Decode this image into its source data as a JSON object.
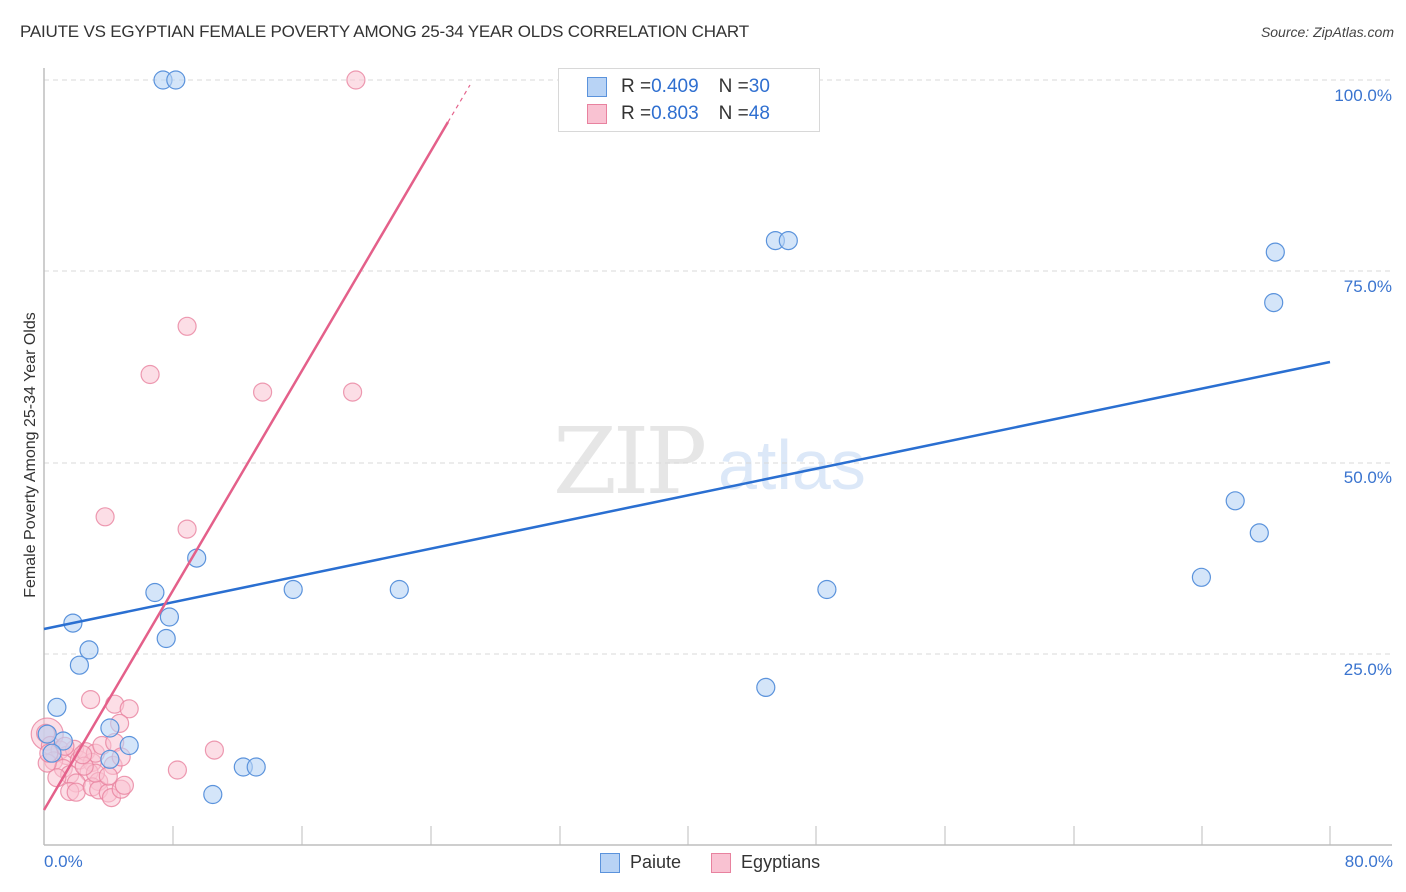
{
  "header": {
    "title": "PAIUTE VS EGYPTIAN FEMALE POVERTY AMONG 25-34 YEAR OLDS CORRELATION CHART",
    "source": "Source: ZipAtlas.com"
  },
  "watermark": {
    "zip": "ZIP",
    "atlas": "atlas"
  },
  "axes": {
    "ylabel": "Female Poverty Among 25-34 Year Olds",
    "x_min_label": "0.0%",
    "x_max_label": "80.0%",
    "y_ticks": [
      "100.0%",
      "75.0%",
      "50.0%",
      "25.0%"
    ]
  },
  "legend": {
    "paiute": {
      "r_label": "R = ",
      "r_value": "0.409",
      "n_label": "N = ",
      "n_value": "30"
    },
    "egyptians": {
      "r_label": "R = ",
      "r_value": "0.803",
      "n_label": "N = ",
      "n_value": "48"
    }
  },
  "bottom_legend": {
    "paiute": "Paiute",
    "egyptians": "Egyptians"
  },
  "colors": {
    "paiute_fill": "#b8d3f5",
    "paiute_stroke": "#5b93dc",
    "paiute_line": "#2a6fd1",
    "egyptians_fill": "#f9c2d2",
    "egyptians_stroke": "#e8829f",
    "egyptians_line": "#e4608a",
    "tick_label": "#3a74cf"
  },
  "chart_data": {
    "type": "scatter",
    "title": "PAIUTE VS EGYPTIAN FEMALE POVERTY AMONG 25-34 YEAR OLDS CORRELATION CHART",
    "xlabel": "",
    "ylabel": "Female Poverty Among 25-34 Year Olds",
    "xlim": [
      0,
      80
    ],
    "ylim": [
      0,
      100
    ],
    "x_ticks": [
      "0.0%",
      "80.0%"
    ],
    "y_ticks": [
      "25.0%",
      "50.0%",
      "75.0%",
      "100.0%"
    ],
    "grid": "horizontal dashed",
    "legend_position": "top-center and bottom",
    "series": [
      {
        "name": "Paiute",
        "r": 0.409,
        "n": 30,
        "trend": {
          "x": [
            0,
            80
          ],
          "y": [
            28.8,
            63.6
          ]
        },
        "points": [
          {
            "x": 7.4,
            "y": 100
          },
          {
            "x": 8.2,
            "y": 100
          },
          {
            "x": 45.5,
            "y": 79.0
          },
          {
            "x": 46.3,
            "y": 79.0
          },
          {
            "x": 76.6,
            "y": 77.5
          },
          {
            "x": 76.5,
            "y": 70.9
          },
          {
            "x": 74.1,
            "y": 45.0
          },
          {
            "x": 75.6,
            "y": 40.8
          },
          {
            "x": 72.0,
            "y": 35.0
          },
          {
            "x": 48.7,
            "y": 33.4
          },
          {
            "x": 44.9,
            "y": 20.6
          },
          {
            "x": 22.1,
            "y": 33.4
          },
          {
            "x": 15.5,
            "y": 33.4
          },
          {
            "x": 9.5,
            "y": 37.5
          },
          {
            "x": 6.9,
            "y": 33.0
          },
          {
            "x": 7.8,
            "y": 29.8
          },
          {
            "x": 7.6,
            "y": 27.0
          },
          {
            "x": 1.8,
            "y": 29.0
          },
          {
            "x": 2.8,
            "y": 25.5
          },
          {
            "x": 2.2,
            "y": 23.5
          },
          {
            "x": 0.8,
            "y": 18.0
          },
          {
            "x": 4.1,
            "y": 15.3
          },
          {
            "x": 1.2,
            "y": 13.6
          },
          {
            "x": 5.3,
            "y": 13.0
          },
          {
            "x": 0.2,
            "y": 14.5
          },
          {
            "x": 4.1,
            "y": 11.2
          },
          {
            "x": 12.4,
            "y": 10.2
          },
          {
            "x": 13.2,
            "y": 10.2
          },
          {
            "x": 10.5,
            "y": 6.6
          },
          {
            "x": 0.5,
            "y": 12.0
          }
        ]
      },
      {
        "name": "Egyptians",
        "r": 0.803,
        "n": 48,
        "trend": {
          "x": [
            0,
            25.1
          ],
          "y": [
            4.6,
            94.4
          ],
          "dashed_extension_to": {
            "x": 26.5,
            "y": 99.3
          }
        },
        "points": [
          {
            "x": 19.4,
            "y": 100
          },
          {
            "x": 8.9,
            "y": 67.8
          },
          {
            "x": 6.6,
            "y": 61.5
          },
          {
            "x": 13.6,
            "y": 59.2
          },
          {
            "x": 19.2,
            "y": 59.2
          },
          {
            "x": 8.9,
            "y": 41.3
          },
          {
            "x": 3.8,
            "y": 42.9
          },
          {
            "x": 2.9,
            "y": 19.0
          },
          {
            "x": 4.4,
            "y": 18.4
          },
          {
            "x": 5.3,
            "y": 17.8
          },
          {
            "x": 4.7,
            "y": 15.9
          },
          {
            "x": 10.6,
            "y": 12.4
          },
          {
            "x": 8.3,
            "y": 9.8
          },
          {
            "x": 0.1,
            "y": 14.6
          },
          {
            "x": 0.4,
            "y": 13.0
          },
          {
            "x": 1.0,
            "y": 12.4
          },
          {
            "x": 1.4,
            "y": 11.7
          },
          {
            "x": 0.6,
            "y": 11.0
          },
          {
            "x": 1.9,
            "y": 12.5
          },
          {
            "x": 2.2,
            "y": 11.1
          },
          {
            "x": 2.6,
            "y": 12.2
          },
          {
            "x": 3.0,
            "y": 10.8
          },
          {
            "x": 1.2,
            "y": 10.0
          },
          {
            "x": 1.6,
            "y": 9.2
          },
          {
            "x": 2.8,
            "y": 9.5
          },
          {
            "x": 3.2,
            "y": 12.0
          },
          {
            "x": 3.6,
            "y": 13.0
          },
          {
            "x": 4.3,
            "y": 10.4
          },
          {
            "x": 4.4,
            "y": 13.4
          },
          {
            "x": 4.8,
            "y": 11.5
          },
          {
            "x": 3.4,
            "y": 8.3
          },
          {
            "x": 2.0,
            "y": 8.1
          },
          {
            "x": 1.6,
            "y": 7.0
          },
          {
            "x": 2.0,
            "y": 6.9
          },
          {
            "x": 3.0,
            "y": 7.6
          },
          {
            "x": 3.4,
            "y": 7.2
          },
          {
            "x": 4.0,
            "y": 6.8
          },
          {
            "x": 4.2,
            "y": 6.2
          },
          {
            "x": 4.8,
            "y": 7.3
          },
          {
            "x": 5.0,
            "y": 7.8
          },
          {
            "x": 3.2,
            "y": 9.4
          },
          {
            "x": 0.8,
            "y": 8.8
          },
          {
            "x": 0.2,
            "y": 10.7
          },
          {
            "x": 2.5,
            "y": 10.3
          },
          {
            "x": 4.0,
            "y": 9.0
          },
          {
            "x": 1.3,
            "y": 12.9
          },
          {
            "x": 0.3,
            "y": 12.0
          },
          {
            "x": 2.4,
            "y": 11.8
          }
        ]
      }
    ]
  }
}
